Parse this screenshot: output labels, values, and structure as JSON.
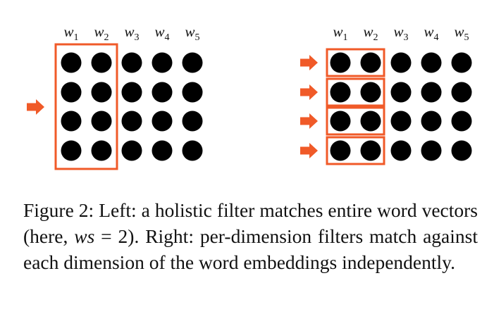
{
  "figure": {
    "word_labels": [
      "w1",
      "w2",
      "w3",
      "w4",
      "w5"
    ],
    "rows": 4,
    "columns": 5,
    "left_panel": {
      "filter": "holistic",
      "window_size": 2,
      "arrows": 1
    },
    "right_panel": {
      "filter": "per-dimension",
      "window_size": 2,
      "arrows": 4
    },
    "colors": {
      "dot": "#000000",
      "filter_box": "#f05a28",
      "arrow": "#f05a28"
    }
  },
  "caption": {
    "lead": "Figure 2: Left: a holistic filter matches entire word vectors (here, ",
    "math_ws": "ws",
    "math_eq": " = 2",
    "tail": "). Right: per-dimension filters match against each dimension of the word embeddings independently."
  }
}
